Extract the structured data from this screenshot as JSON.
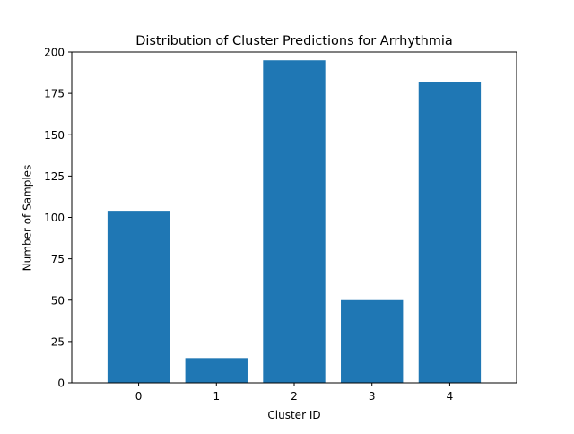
{
  "chart_data": {
    "type": "bar",
    "title": "Distribution of Cluster Predictions for Arrhythmia",
    "xlabel": "Cluster ID",
    "ylabel": "Number of Samples",
    "categories": [
      "0",
      "1",
      "2",
      "3",
      "4"
    ],
    "values": [
      104,
      15,
      195,
      50,
      182
    ],
    "ylim": [
      0,
      200
    ],
    "yticks": [
      0,
      25,
      50,
      75,
      100,
      125,
      150,
      175,
      200
    ],
    "grid": false,
    "bar_color": "#1f77b4"
  }
}
